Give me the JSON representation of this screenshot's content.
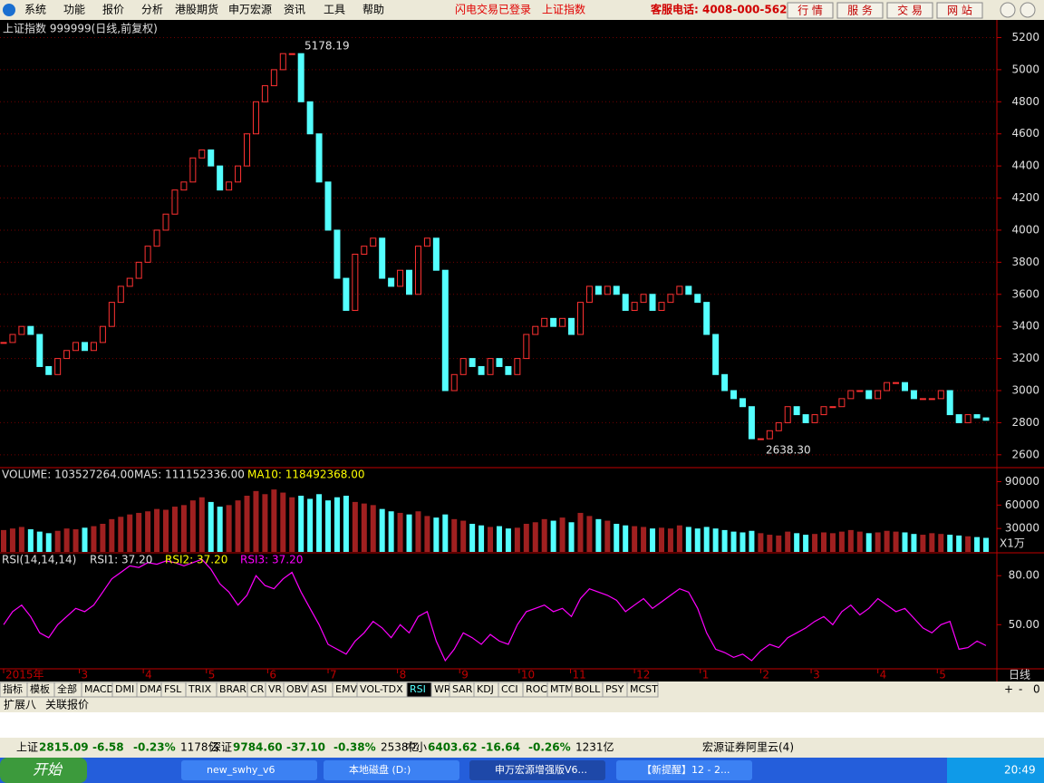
{
  "menu": [
    "系统",
    "功能",
    "报价",
    "分析",
    "港股期货",
    "申万宏源",
    "资讯",
    "工具",
    "帮助"
  ],
  "header": {
    "login": "闪电交易已登录",
    "index": "上证指数",
    "hotline": "客服电话: 4008-000-562",
    "buttons": [
      "行 情",
      "服 务",
      "交 易",
      "网 站"
    ]
  },
  "price_chart": {
    "type": "candlestick",
    "title": "上证指数 999999(日线,前复权)",
    "close": [
      3300,
      3350,
      3400,
      3350,
      3150,
      3100,
      3200,
      3250,
      3300,
      3250,
      3300,
      3400,
      3550,
      3650,
      3700,
      3800,
      3900,
      4000,
      4100,
      4250,
      4300,
      4450,
      4500,
      4400,
      4250,
      4300,
      4400,
      4600,
      4800,
      4900,
      5000,
      5100,
      5100,
      4800,
      4600,
      4300,
      4000,
      3700,
      3500,
      3850,
      3900,
      3950,
      3700,
      3650,
      3750,
      3600,
      3900,
      3950,
      3750,
      3000,
      3100,
      3200,
      3150,
      3100,
      3200,
      3150,
      3100,
      3200,
      3350,
      3400,
      3450,
      3400,
      3450,
      3350,
      3550,
      3650,
      3600,
      3650,
      3600,
      3500,
      3550,
      3600,
      3500,
      3550,
      3600,
      3650,
      3600,
      3550,
      3350,
      3100,
      3000,
      2950,
      2900,
      2700,
      2700,
      2750,
      2800,
      2900,
      2850,
      2800,
      2850,
      2900,
      2900,
      2950,
      3000,
      3000,
      2950,
      3000,
      3050,
      3050,
      3000,
      2950,
      2950,
      2950,
      3000,
      2850,
      2800,
      2850,
      2830,
      2815
    ],
    "ylim": [
      2520,
      5310
    ],
    "yticks": [
      2600,
      2800,
      3000,
      3200,
      3400,
      3600,
      3800,
      4000,
      4200,
      4400,
      4600,
      4800,
      5000,
      5200
    ],
    "annotations": [
      "5178.19",
      "2638.30"
    ],
    "up_color": "#ff3232",
    "down_color": "#54ffff",
    "grid": true
  },
  "volume_chart": {
    "type": "bar",
    "labels": [
      "VOLUME: 103527264.00",
      "MA5: 111152336.00",
      "MA10: 118492368.00"
    ],
    "values": [
      28000,
      30000,
      32000,
      29000,
      26000,
      24000,
      27000,
      30000,
      29000,
      31000,
      33000,
      36000,
      42000,
      45000,
      48000,
      50000,
      52000,
      55000,
      54000,
      58000,
      60000,
      66000,
      70000,
      64000,
      58000,
      60000,
      66000,
      72000,
      78000,
      74000,
      80000,
      76000,
      70000,
      72000,
      68000,
      74000,
      66000,
      70000,
      72000,
      64000,
      62000,
      60000,
      55000,
      52000,
      50000,
      48000,
      52000,
      46000,
      44000,
      48000,
      42000,
      40000,
      36000,
      34000,
      32000,
      33000,
      30000,
      31000,
      36000,
      38000,
      42000,
      40000,
      44000,
      38000,
      50000,
      46000,
      42000,
      40000,
      36000,
      34000,
      33000,
      32000,
      30000,
      31000,
      30000,
      34000,
      32000,
      30000,
      32000,
      30000,
      28000,
      26000,
      25000,
      27000,
      24000,
      22000,
      21000,
      26000,
      24000,
      22000,
      23000,
      25000,
      24000,
      26000,
      28000,
      26000,
      24000,
      25000,
      27000,
      26000,
      25000,
      23000,
      22000,
      24000,
      23000,
      22000,
      21000,
      20000,
      19000,
      18000
    ],
    "ylim": [
      0,
      108000
    ],
    "yticks": [
      30000,
      60000,
      90000
    ],
    "unit": "X1万"
  },
  "rsi_chart": {
    "type": "line",
    "labels": [
      "RSI(14,14,14)",
      "RSI1: 37.20",
      "RSI2: 37.20",
      "RSI3: 37.20"
    ],
    "values": [
      50,
      58,
      62,
      55,
      45,
      42,
      50,
      55,
      60,
      58,
      62,
      70,
      78,
      82,
      86,
      85,
      88,
      87,
      89,
      88,
      86,
      88,
      90,
      84,
      75,
      70,
      62,
      68,
      80,
      74,
      72,
      78,
      82,
      70,
      60,
      50,
      38,
      35,
      32,
      40,
      45,
      52,
      48,
      42,
      50,
      45,
      55,
      58,
      40,
      28,
      35,
      45,
      42,
      38,
      44,
      40,
      38,
      50,
      58,
      60,
      62,
      58,
      60,
      55,
      66,
      72,
      70,
      68,
      65,
      58,
      62,
      66,
      60,
      64,
      68,
      72,
      70,
      60,
      45,
      35,
      33,
      30,
      32,
      28,
      34,
      38,
      36,
      42,
      45,
      48,
      52,
      55,
      50,
      58,
      62,
      56,
      60,
      66,
      62,
      58,
      60,
      54,
      48,
      45,
      50,
      52,
      35,
      36,
      40,
      37.2
    ],
    "color": "#ff00ff",
    "ylim": [
      23,
      94
    ],
    "yticks": [
      {
        "value": 80,
        "label": "80.00"
      },
      {
        "value": 50,
        "label": "50.00"
      }
    ]
  },
  "x_axis": {
    "xlim": [
      0,
      109
    ],
    "xticks": [
      {
        "value": 0,
        "label": "2015年"
      },
      {
        "value": 8.4,
        "label": "3"
      },
      {
        "value": 15.5,
        "label": "4"
      },
      {
        "value": 22.5,
        "label": "5"
      },
      {
        "value": 29.3,
        "label": "6"
      },
      {
        "value": 36,
        "label": "7"
      },
      {
        "value": 43.7,
        "label": "8"
      },
      {
        "value": 50.6,
        "label": "9"
      },
      {
        "value": 57.2,
        "label": "10"
      },
      {
        "value": 62.9,
        "label": "11"
      },
      {
        "value": 70,
        "label": "12"
      },
      {
        "value": 77.3,
        "label": "1"
      },
      {
        "value": 84,
        "label": "2"
      },
      {
        "value": 89.6,
        "label": "3"
      },
      {
        "value": 97,
        "label": "4"
      },
      {
        "value": 103.6,
        "label": "5"
      }
    ],
    "period": "日线"
  },
  "tabs": [
    "指标",
    "模板",
    "全部",
    "MACD",
    "DMI",
    "DMA",
    "FSL",
    "TRIX",
    "BRAR",
    "CR",
    "VR",
    "OBV",
    "ASI",
    "EMV",
    "VOL-TDX",
    "RSI",
    "WR",
    "SAR",
    "KDJ",
    "CCI",
    "ROC",
    "MTM",
    "BOLL",
    "PSY",
    "MCST"
  ],
  "tab_controls": [
    "+",
    "-",
    "0"
  ],
  "sub_tabs": [
    "扩展八",
    "关联报价"
  ],
  "status": {
    "sh": [
      "上证",
      "2815.09",
      "-6.58",
      "-0.23%",
      "1178亿"
    ],
    "sz": [
      "深证",
      "9784.60",
      "-37.10",
      "-0.38%",
      "2538亿"
    ],
    "zx": [
      "中小",
      "6403.62",
      "-16.64",
      "-0.26%",
      "1231亿"
    ],
    "server": "宏源证券阿里云(4)"
  },
  "taskbar": {
    "start": "开始",
    "items": [
      "new_swhy_v6",
      "本地磁盘 (D:)",
      "申万宏源增强版V6...",
      "【新提醒】12 - 2..."
    ],
    "clock": "20:49"
  }
}
